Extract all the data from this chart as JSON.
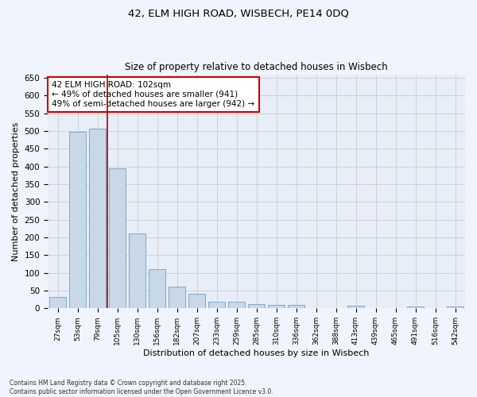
{
  "title1": "42, ELM HIGH ROAD, WISBECH, PE14 0DQ",
  "title2": "Size of property relative to detached houses in Wisbech",
  "xlabel": "Distribution of detached houses by size in Wisbech",
  "ylabel": "Number of detached properties",
  "categories": [
    "27sqm",
    "53sqm",
    "79sqm",
    "105sqm",
    "130sqm",
    "156sqm",
    "182sqm",
    "207sqm",
    "233sqm",
    "259sqm",
    "285sqm",
    "310sqm",
    "336sqm",
    "362sqm",
    "388sqm",
    "413sqm",
    "439sqm",
    "465sqm",
    "491sqm",
    "516sqm",
    "542sqm"
  ],
  "values": [
    33,
    497,
    507,
    395,
    212,
    110,
    62,
    40,
    18,
    18,
    13,
    10,
    10,
    0,
    0,
    8,
    0,
    0,
    5,
    0,
    5
  ],
  "bar_color": "#c8d8e8",
  "bar_edge_color": "#7aaac8",
  "grid_color": "#cccccc",
  "bg_color": "#e8eef8",
  "vline_color": "#aa0000",
  "vline_x": 2.5,
  "annotation_text": "42 ELM HIGH ROAD: 102sqm\n← 49% of detached houses are smaller (941)\n49% of semi-detached houses are larger (942) →",
  "annotation_box_color": "#ffffff",
  "annotation_box_edge": "#cc0000",
  "footer_text": "Contains HM Land Registry data © Crown copyright and database right 2025.\nContains public sector information licensed under the Open Government Licence v3.0.",
  "ylim": [
    0,
    660
  ],
  "yticks": [
    0,
    50,
    100,
    150,
    200,
    250,
    300,
    350,
    400,
    450,
    500,
    550,
    600,
    650
  ],
  "fig_bg": "#f0f4fc"
}
